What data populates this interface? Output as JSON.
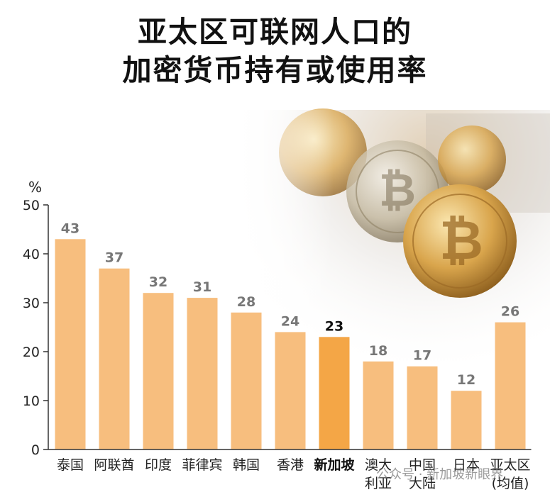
{
  "title_line1": "亚太区可联网人口的",
  "title_line2": "加密货币持有或使用率",
  "watermark": "公众号 · 新加坡新眼界",
  "colors": {
    "bar": "#F7BE7E",
    "bar_highlight": "#F4A646",
    "axis": "#333333"
  },
  "chart_data": {
    "type": "bar",
    "title": "亚太区可联网人口的加密货币持有或使用率",
    "ylabel": "%",
    "xlabel": "",
    "ylim": [
      0,
      50
    ],
    "yticks": [
      0,
      10,
      20,
      30,
      40,
      50
    ],
    "grid": false,
    "categories": [
      [
        "泰国"
      ],
      [
        "阿联酋"
      ],
      [
        "印度"
      ],
      [
        "菲律宾"
      ],
      [
        "韩国"
      ],
      [
        "香港"
      ],
      [
        "新加坡"
      ],
      [
        "澳大",
        "利亚"
      ],
      [
        "中国",
        "大陆"
      ],
      [
        "日本"
      ],
      [
        "亚太区",
        "(均值)"
      ]
    ],
    "values": [
      43,
      37,
      32,
      31,
      28,
      24,
      23,
      18,
      17,
      12,
      26
    ],
    "highlight_index": 6
  }
}
